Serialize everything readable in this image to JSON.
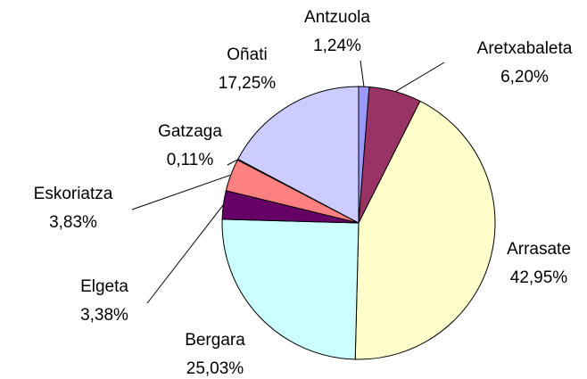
{
  "chart_data": {
    "type": "pie",
    "categories": [
      "Antzuola",
      "Aretxabaleta",
      "Arrasate",
      "Bergara",
      "Elgeta",
      "Eskoriatza",
      "Gatzaga",
      "Oñati"
    ],
    "values": [
      1.24,
      6.2,
      42.95,
      25.03,
      3.38,
      3.83,
      0.11,
      17.25
    ],
    "value_labels": [
      "1,24%",
      "6,20%",
      "42,95%",
      "25,03%",
      "3,38%",
      "3,83%",
      "0,11%",
      "17,25%"
    ],
    "colors": [
      "#9999FF",
      "#993366",
      "#FFFFCC",
      "#CCFFFF",
      "#660066",
      "#FF8080",
      "#0066CC",
      "#CCCCFF"
    ]
  }
}
